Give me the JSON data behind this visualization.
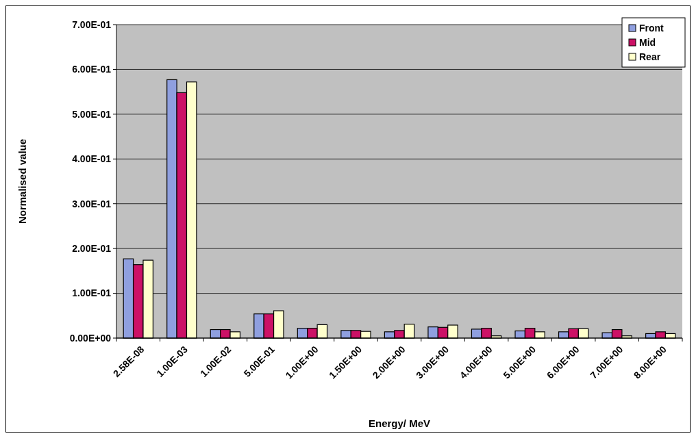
{
  "chart_data": {
    "type": "bar",
    "xlabel": "Energy/ MeV",
    "ylabel": "Normalised value",
    "categories": [
      "2.58E-08",
      "1.00E-03",
      "1.00E-02",
      "5.00E-01",
      "1.00E+00",
      "1.50E+00",
      "2.00E+00",
      "3.00E+00",
      "4.00E+00",
      "5.00E+00",
      "6.00E+00",
      "7.00E+00",
      "8.00E+00"
    ],
    "series": [
      {
        "name": "Front",
        "color": "#8f9fdf",
        "values": [
          0.177,
          0.577,
          0.019,
          0.054,
          0.022,
          0.017,
          0.014,
          0.025,
          0.02,
          0.016,
          0.014,
          0.012,
          0.01
        ]
      },
      {
        "name": "Mid",
        "color": "#cc1166",
        "values": [
          0.164,
          0.548,
          0.019,
          0.054,
          0.022,
          0.017,
          0.017,
          0.024,
          0.022,
          0.022,
          0.021,
          0.019,
          0.014
        ]
      },
      {
        "name": "Rear",
        "color": "#ffffcc",
        "values": [
          0.174,
          0.572,
          0.014,
          0.061,
          0.03,
          0.015,
          0.031,
          0.029,
          0.005,
          0.014,
          0.021,
          0.005,
          0.01
        ]
      }
    ],
    "ylim": [
      0,
      0.7
    ],
    "yticks": [
      {
        "value": 0,
        "label": "0.00E+00"
      },
      {
        "value": 0.1,
        "label": "1.00E-01"
      },
      {
        "value": 0.2,
        "label": "2.00E-01"
      },
      {
        "value": 0.3,
        "label": "3.00E-01"
      },
      {
        "value": 0.4,
        "label": "4.00E-01"
      },
      {
        "value": 0.5,
        "label": "5.00E-01"
      },
      {
        "value": 0.6,
        "label": "6.00E-01"
      },
      {
        "value": 0.7,
        "label": "7.00E-01"
      }
    ],
    "grid": "y",
    "legend": "top right"
  }
}
